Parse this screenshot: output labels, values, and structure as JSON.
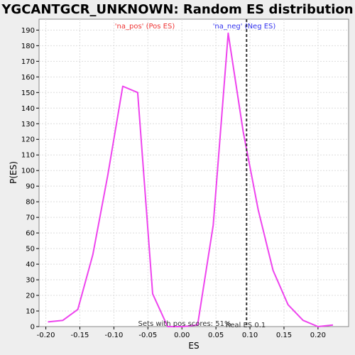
{
  "chart_data": {
    "type": "line",
    "title": "YGCANTGCR_UNKNOWN: Random ES distribution",
    "xlabel": "ES",
    "ylabel": "P(ES)",
    "xlim": [
      -0.21,
      0.245
    ],
    "ylim": [
      0,
      197
    ],
    "x_ticks": [
      -0.2,
      -0.15,
      -0.1,
      -0.05,
      0.0,
      0.05,
      0.1,
      0.15,
      0.2
    ],
    "x_tick_labels": [
      "-0.20",
      "-0.15",
      "-0.10",
      "-0.05",
      "0.00",
      "0.05",
      "0.10",
      "0.15",
      "0.20"
    ],
    "y_ticks": [
      0,
      10,
      20,
      30,
      40,
      50,
      60,
      70,
      80,
      90,
      100,
      110,
      120,
      130,
      140,
      150,
      160,
      170,
      180,
      190
    ],
    "grid": true,
    "series": [
      {
        "color": "#ee44ee",
        "x": [
          -0.197,
          -0.175,
          -0.153,
          -0.131,
          -0.109,
          -0.087,
          -0.065,
          -0.043,
          -0.021,
          0.001,
          0.023,
          0.046,
          0.068,
          0.09,
          0.112,
          0.134,
          0.156,
          0.178,
          0.2,
          0.222
        ],
        "y": [
          3,
          4,
          11,
          46,
          97,
          154,
          150,
          21,
          0,
          0,
          1,
          65,
          188,
          125,
          75,
          36,
          14,
          4,
          0,
          1
        ]
      }
    ],
    "annotations": {
      "pos_label": "'na_pos' (Pos ES)",
      "pos_color": "#ee3333",
      "neg_label": "'na_neg' (Neg ES)",
      "neg_color": "#3333ee",
      "real_es_label": "Real ES 0.1",
      "real_es_value": 0.095,
      "sets_label": "Sets with pos scores: 51%"
    }
  }
}
